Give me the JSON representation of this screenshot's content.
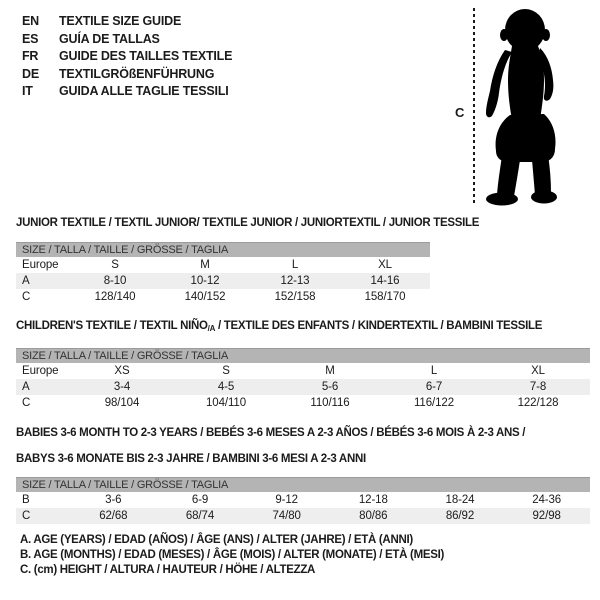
{
  "header": {
    "languages": [
      {
        "code": "EN",
        "text": "TEXTILE SIZE GUIDE"
      },
      {
        "code": "ES",
        "text": "GUÍA DE TALLAS"
      },
      {
        "code": "FR",
        "text": "GUIDE DES TAILLES TEXTILE"
      },
      {
        "code": "DE",
        "text": "TEXTILGRÖßENFÜHRUNG"
      },
      {
        "code": "IT",
        "text": "GUIDA ALLE TAGLIE TESSILI"
      }
    ]
  },
  "figure": {
    "icon": "baby-silhouette-icon",
    "measure_line": "height-dashed-line",
    "height_label": "C"
  },
  "tables": [
    {
      "id": "junior",
      "title_lines": [
        [
          {
            "text": "JUNIOR TEXTILE / TEXTIL JUNIOR/ TEXTILE JUNIOR / JUNIORTEXTIL / JUNIOR TESSILE"
          }
        ]
      ],
      "size_header": "SIZE / TALLA / TAILLE / GRÖSSE / TAGLIA",
      "rows": [
        {
          "label": "Europe",
          "shaded": false,
          "cells": [
            "S",
            "M",
            "L",
            "XL"
          ]
        },
        {
          "label": "A",
          "shaded": true,
          "cells": [
            "8-10",
            "10-12",
            "12-13",
            "14-16"
          ]
        },
        {
          "label": "C",
          "shaded": false,
          "cells": [
            "128/140",
            "140/152",
            "152/158",
            "158/170"
          ]
        }
      ]
    },
    {
      "id": "children",
      "title_lines": [
        [
          {
            "text": "CHILDREN'S TEXTILE / TEXTIL NIÑO"
          },
          {
            "text": "/A",
            "sub": true
          },
          {
            "text": " / TEXTILE DES ENFANTS / KINDERTEXTIL / BAMBINI TESSILE"
          }
        ]
      ],
      "size_header": "SIZE / TALLA / TAILLE / GRÖSSE / TAGLIA",
      "rows": [
        {
          "label": "Europe",
          "shaded": false,
          "cells": [
            "XS",
            "S",
            "M",
            "L",
            "XL"
          ]
        },
        {
          "label": "A",
          "shaded": true,
          "cells": [
            "3-4",
            "4-5",
            "5-6",
            "6-7",
            "7-8"
          ]
        },
        {
          "label": "C",
          "shaded": false,
          "cells": [
            "98/104",
            "104/110",
            "110/116",
            "116/122",
            "122/128"
          ]
        }
      ]
    },
    {
      "id": "babies",
      "title_lines": [
        [
          {
            "text": "BABIES 3-6 MONTH TO 2-3 YEARS / BEBÉS 3-6 MESES A 2-3 AÑOS / BÉBÉS 3-6 MOIS À 2-3 ANS /"
          }
        ],
        [
          {
            "text": "BABYS 3-6 MONATE BIS 2-3 JAHRE / BAMBINI 3-6 MESI A 2-3 ANNI"
          }
        ]
      ],
      "size_header": "SIZE / TALLA / TAILLE / GRÖSSE / TAGLIA",
      "rows": [
        {
          "label": "B",
          "shaded": false,
          "cells": [
            "3-6",
            "6-9",
            "9-12",
            "12-18",
            "18-24",
            "24-36"
          ]
        },
        {
          "label": "C",
          "shaded": true,
          "cells": [
            "62/68",
            "68/74",
            "74/80",
            "80/86",
            "86/92",
            "92/98"
          ]
        }
      ]
    }
  ],
  "footnotes": [
    "A. AGE (YEARS) / EDAD (AÑOS) / ÂGE (ANS) / ALTER (JAHRE) / ETÀ (ANNI)",
    "B. AGE (MONTHS) / EDAD (MESES) / ÂGE (MOIS) / ALTER (MONATE) / ETÀ (MESI)",
    "C. (cm) HEIGHT / ALTURA / HAUTEUR / HÖHE / ALTEZZA"
  ],
  "colors": {
    "background": "#ffffff",
    "text": "#1b1b1b",
    "size_bar": "#b4b4b4",
    "size_bar_edge": "#9b9b9b",
    "row_shade": "#eeeeee",
    "silhouette": "#000000"
  }
}
